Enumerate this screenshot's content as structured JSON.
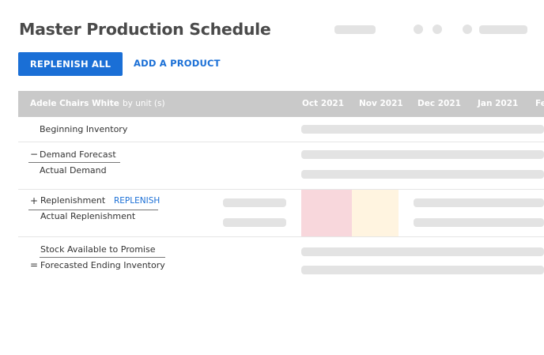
{
  "page": {
    "title": "Master Production Schedule"
  },
  "toolbar": {
    "replenish_all_label": "REPLENISH ALL",
    "add_product_label": "ADD A PRODUCT"
  },
  "table": {
    "product": "Adele Chairs White",
    "unit": "by unit (s)",
    "months": [
      "Oct 2021",
      "Nov 2021",
      "Dec 2021",
      "Jan 2021",
      "Fe"
    ]
  },
  "rows": {
    "beginning_inventory": "Beginning Inventory",
    "demand_forecast": "Demand Forecast",
    "actual_demand": "Actual Demand",
    "replenishment": "Replenishment",
    "replenish_action": "REPLENISH",
    "actual_replenishment": "Actual Replenishment",
    "stock_available": "Stock Available to Promise",
    "forecasted_ending": "Forecasted Ending Inventory"
  },
  "operators": {
    "minus": "−",
    "plus": "+",
    "equals": "="
  },
  "colors": {
    "accent": "#1a6fd6",
    "header_bg": "#c9c9c9",
    "placeholder": "#e3e3e3",
    "highlight_red": "#f8d7dc",
    "highlight_yellow": "#fff4e0"
  }
}
